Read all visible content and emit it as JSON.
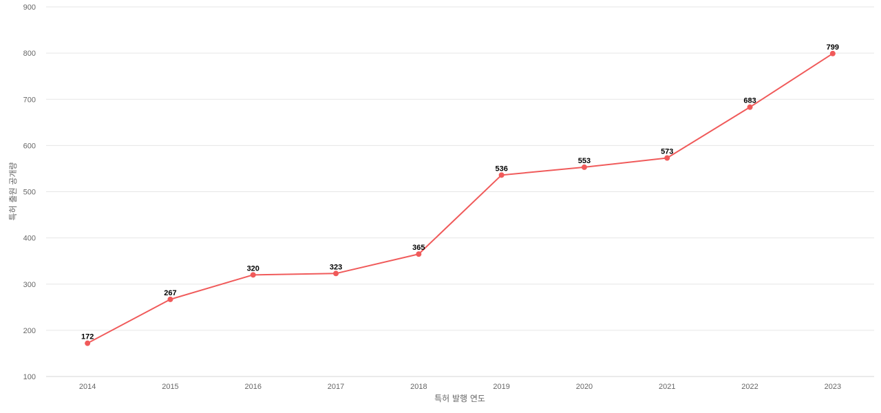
{
  "chart_data": {
    "type": "line",
    "title": "",
    "xlabel": "특허 발행 연도",
    "ylabel": "특허 출원 공개량",
    "x": [
      "2014",
      "2015",
      "2016",
      "2017",
      "2018",
      "2019",
      "2020",
      "2021",
      "2022",
      "2023"
    ],
    "series": [
      {
        "values": [
          172,
          267,
          320,
          323,
          365,
          536,
          553,
          573,
          683,
          799
        ],
        "color": "#f05a5a"
      }
    ],
    "ylim": [
      100,
      900
    ],
    "yticks": [
      100,
      200,
      300,
      400,
      500,
      600,
      700,
      800,
      900
    ],
    "grid": true,
    "legend": "none",
    "data_labels": true
  }
}
